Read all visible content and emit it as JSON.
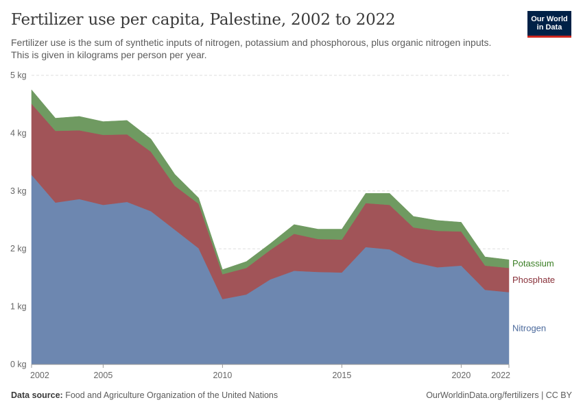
{
  "header": {
    "title": "Fertilizer use per capita, Palestine, 2002 to 2022",
    "subtitle": "Fertilizer use is the sum of synthetic inputs of nitrogen, potassium and phosphorous, plus organic nitrogen inputs. This is given in kilograms per person per year."
  },
  "logo": {
    "line1": "Our World",
    "line2": "in Data",
    "bg_color": "#002147",
    "accent_color": "#ce261e"
  },
  "footer": {
    "source_label": "Data source:",
    "source_text": "Food and Agriculture Organization of the United Nations",
    "url_text": "OurWorldinData.org/fertilizers | CC BY"
  },
  "chart_data": {
    "type": "area",
    "stacked": true,
    "x": [
      2002,
      2003,
      2004,
      2005,
      2006,
      2007,
      2008,
      2009,
      2010,
      2011,
      2012,
      2013,
      2014,
      2015,
      2016,
      2017,
      2018,
      2019,
      2020,
      2021,
      2022
    ],
    "series": [
      {
        "name": "Nitrogen",
        "color": "#6d87b0",
        "values": [
          3.28,
          2.8,
          2.86,
          2.76,
          2.81,
          2.65,
          2.33,
          2.01,
          1.13,
          1.21,
          1.47,
          1.62,
          1.6,
          1.59,
          2.03,
          1.99,
          1.77,
          1.68,
          1.71,
          1.29,
          1.25
        ]
      },
      {
        "name": "Phosphate",
        "color": "#a15458",
        "values": [
          1.23,
          1.24,
          1.19,
          1.21,
          1.17,
          1.03,
          0.76,
          0.77,
          0.43,
          0.46,
          0.51,
          0.64,
          0.57,
          0.57,
          0.76,
          0.77,
          0.6,
          0.63,
          0.59,
          0.42,
          0.42
        ]
      },
      {
        "name": "Potassium",
        "color": "#6f9a61",
        "values": [
          0.24,
          0.22,
          0.24,
          0.23,
          0.24,
          0.22,
          0.2,
          0.1,
          0.08,
          0.11,
          0.11,
          0.16,
          0.17,
          0.18,
          0.17,
          0.2,
          0.19,
          0.18,
          0.16,
          0.15,
          0.14
        ]
      }
    ],
    "y_ticks": [
      "0 kg",
      "1 kg",
      "2 kg",
      "3 kg",
      "4 kg",
      "5 kg"
    ],
    "y_tick_values": [
      0,
      1,
      2,
      3,
      4,
      5
    ],
    "x_ticks": [
      "2002",
      "2005",
      "2010",
      "2015",
      "2020",
      "2022"
    ],
    "x_tick_values": [
      2002,
      2005,
      2010,
      2015,
      2020,
      2022
    ],
    "ylim": [
      0,
      5
    ],
    "xlim": [
      2002,
      2022
    ],
    "grid": "horizontal-dashed",
    "legend": "inline-right"
  }
}
